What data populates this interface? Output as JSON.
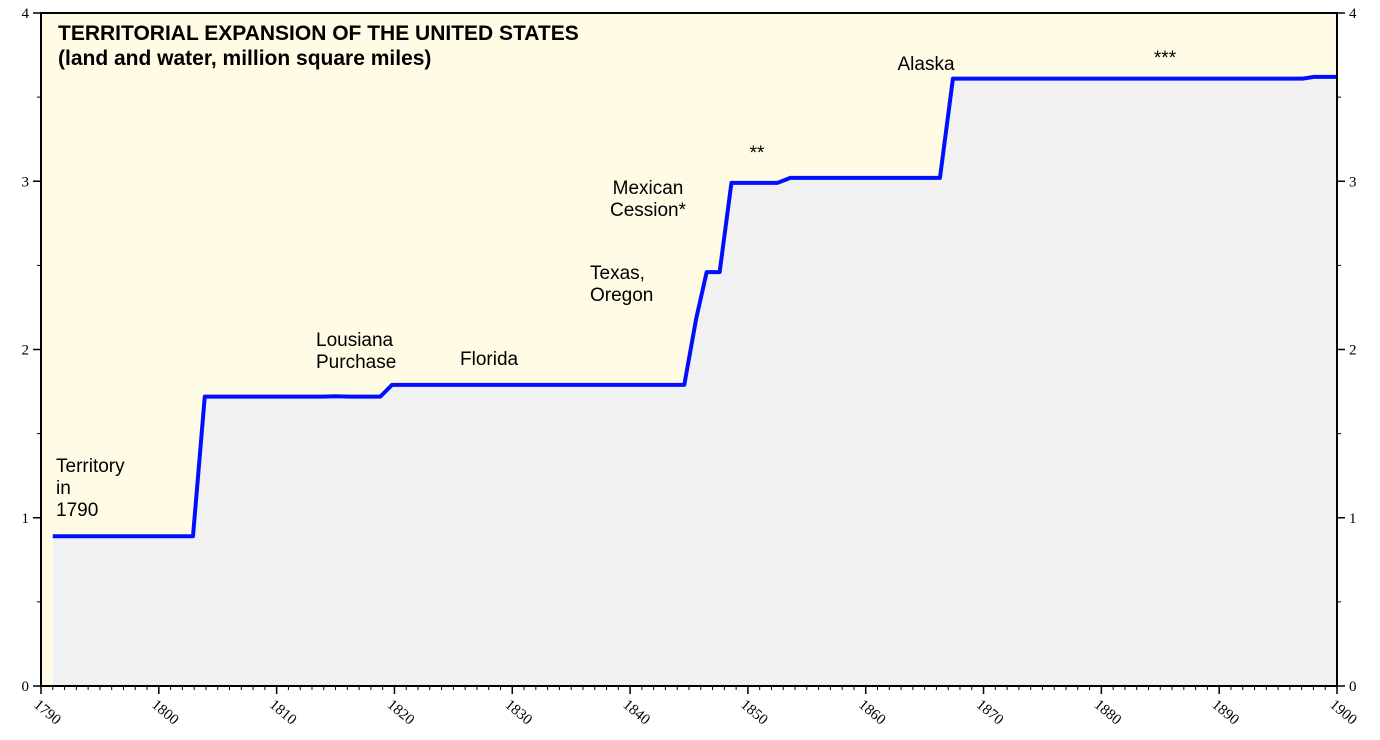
{
  "chart_data": {
    "type": "line",
    "title": "TERRITORIAL EXPANSION OF THE UNITED STATES",
    "subtitle": "(land and water, million square miles)",
    "x": [
      1791,
      1802.9,
      1803.9,
      1813.9,
      1815,
      1816.2,
      1818.8,
      1819.8,
      1844.6,
      1845.6,
      1846.5,
      1847.6,
      1848.6,
      1852.5,
      1853.6,
      1866.3,
      1867.4,
      1897.1,
      1898,
      1900
    ],
    "series": [
      {
        "name": "Territory",
        "color": "#0010ff",
        "values": [
          0.89,
          0.89,
          1.72,
          1.72,
          1.722,
          1.72,
          1.72,
          1.79,
          1.79,
          2.18,
          2.46,
          2.46,
          2.99,
          2.99,
          3.02,
          3.02,
          3.61,
          3.61,
          3.62,
          3.62
        ]
      }
    ],
    "xlim": [
      1790,
      1900
    ],
    "xticks": [
      1790,
      1800,
      1810,
      1820,
      1830,
      1840,
      1850,
      1860,
      1870,
      1880,
      1890,
      1900
    ],
    "ylim": [
      0,
      4
    ],
    "yticks": [
      0,
      1,
      2,
      3,
      4
    ],
    "annotations": [
      [
        "Territory",
        "in",
        "1790"
      ],
      [
        "Lousiana",
        "Purchase"
      ],
      [
        "Florida"
      ],
      [
        "Texas,",
        "Oregon"
      ],
      [
        "Mexican",
        "Cession*"
      ],
      [
        "**"
      ],
      [
        "Alaska"
      ],
      [
        "***"
      ]
    ]
  }
}
